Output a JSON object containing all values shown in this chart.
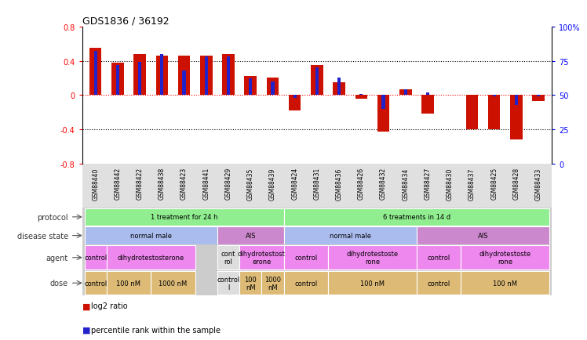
{
  "title": "GDS1836 / 36192",
  "samples": [
    "GSM88440",
    "GSM88442",
    "GSM88422",
    "GSM88438",
    "GSM88423",
    "GSM88441",
    "GSM88429",
    "GSM88435",
    "GSM88439",
    "GSM88424",
    "GSM88431",
    "GSM88436",
    "GSM88426",
    "GSM88432",
    "GSM88434",
    "GSM88427",
    "GSM88430",
    "GSM88437",
    "GSM88425",
    "GSM88428",
    "GSM88433"
  ],
  "log2_ratio": [
    0.55,
    0.38,
    0.48,
    0.46,
    0.46,
    0.46,
    0.48,
    0.22,
    0.2,
    -0.18,
    0.35,
    0.15,
    -0.04,
    -0.43,
    0.07,
    -0.22,
    0.0,
    -0.4,
    -0.4,
    -0.52,
    -0.07
  ],
  "percentile_rank": [
    82,
    72,
    74,
    80,
    68,
    78,
    78,
    62,
    60,
    48,
    70,
    63,
    51,
    40,
    54,
    52,
    50,
    50,
    49,
    43,
    49
  ],
  "bar_color": "#cc1100",
  "pct_color": "#2222cc",
  "ylim_left": [
    -0.8,
    0.8
  ],
  "ylim_right": [
    0,
    100
  ],
  "protocol_groups": [
    {
      "label": "1 treatment for 24 h",
      "start": 0,
      "end": 9,
      "color": "#90ee90"
    },
    {
      "label": "6 treatments in 14 d",
      "start": 9,
      "end": 21,
      "color": "#90ee90"
    }
  ],
  "disease_groups": [
    {
      "label": "normal male",
      "start": 0,
      "end": 6,
      "color": "#aabbee"
    },
    {
      "label": "AIS",
      "start": 6,
      "end": 9,
      "color": "#cc88cc"
    },
    {
      "label": "normal male",
      "start": 9,
      "end": 15,
      "color": "#aabbee"
    },
    {
      "label": "AIS",
      "start": 15,
      "end": 21,
      "color": "#cc88cc"
    }
  ],
  "agent_groups": [
    {
      "label": "control",
      "start": 0,
      "end": 1,
      "color": "#ee88ee"
    },
    {
      "label": "dihydrotestosterone",
      "start": 1,
      "end": 5,
      "color": "#ee88ee"
    },
    {
      "label": "cont\nrol",
      "start": 6,
      "end": 7,
      "color": "#dddddd"
    },
    {
      "label": "dihydrotestost\nerone",
      "start": 7,
      "end": 9,
      "color": "#ee88ee"
    },
    {
      "label": "control",
      "start": 9,
      "end": 11,
      "color": "#ee88ee"
    },
    {
      "label": "dihydrotestoste\nrone",
      "start": 11,
      "end": 15,
      "color": "#ee88ee"
    },
    {
      "label": "control",
      "start": 15,
      "end": 17,
      "color": "#ee88ee"
    },
    {
      "label": "dihydrotestoste\nrone",
      "start": 17,
      "end": 21,
      "color": "#ee88ee"
    }
  ],
  "dose_groups": [
    {
      "label": "control",
      "start": 0,
      "end": 1,
      "color": "#ddbb77"
    },
    {
      "label": "100 nM",
      "start": 1,
      "end": 3,
      "color": "#ddbb77"
    },
    {
      "label": "1000 nM",
      "start": 3,
      "end": 5,
      "color": "#ddbb77"
    },
    {
      "label": "control\nl",
      "start": 6,
      "end": 7,
      "color": "#dddddd"
    },
    {
      "label": "100\nnM",
      "start": 7,
      "end": 8,
      "color": "#ddbb77"
    },
    {
      "label": "1000\nnM",
      "start": 8,
      "end": 9,
      "color": "#ddbb77"
    },
    {
      "label": "control",
      "start": 9,
      "end": 11,
      "color": "#ddbb77"
    },
    {
      "label": "100 nM",
      "start": 11,
      "end": 15,
      "color": "#ddbb77"
    },
    {
      "label": "control",
      "start": 15,
      "end": 17,
      "color": "#ddbb77"
    },
    {
      "label": "100 nM",
      "start": 17,
      "end": 21,
      "color": "#ddbb77"
    }
  ],
  "row_labels": [
    "protocol",
    "disease state",
    "agent",
    "dose"
  ],
  "bg_color": "#ffffff",
  "tick_bg_color": "#e0e0e0",
  "legend_red_label": "log2 ratio",
  "legend_blue_label": "percentile rank within the sample"
}
